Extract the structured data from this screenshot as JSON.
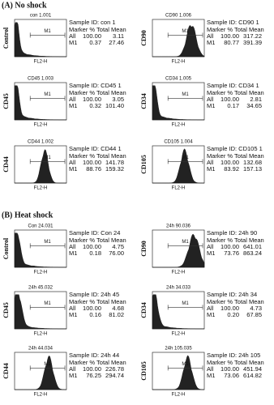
{
  "sections": [
    {
      "title": "(A) No shock",
      "panels": [
        {
          "marker": "Control",
          "file": "con 1.001",
          "sample_id": "Sample ID: con 1",
          "header": "Marker % Total Mean",
          "rows": [
            [
              "All",
              "100.00",
              "3.11"
            ],
            [
              "M1",
              "0.37",
              "27.46"
            ]
          ],
          "gate": "M1",
          "xlabel": "FL2-H"
        },
        {
          "marker": "CD90",
          "file": "CD90 1.006",
          "sample_id": "Sample ID: CD90 1",
          "header": "Marker % Total Mean",
          "rows": [
            [
              "All",
              "100.00",
              "317.22"
            ],
            [
              "M1",
              "80.77",
              "391.39"
            ]
          ],
          "gate": "M1",
          "xlabel": "FL2-H"
        },
        {
          "marker": "CD45",
          "file": "CD45 1.003",
          "sample_id": "Sample ID: CD45 1",
          "header": "Marker % Total Mean",
          "rows": [
            [
              "All",
              "100.00",
              "3.05"
            ],
            [
              "M1",
              "0.32",
              "101.40"
            ]
          ],
          "gate": "M1",
          "xlabel": "FL2-H"
        },
        {
          "marker": "CD34",
          "file": "CD34 1.005",
          "sample_id": "Sample ID: CD34 1",
          "header": "Marker % Total Mean",
          "rows": [
            [
              "All",
              "100.00",
              "2.81"
            ],
            [
              "M1",
              "0.17",
              "34.65"
            ]
          ],
          "gate": "M1",
          "xlabel": "FL2-H"
        },
        {
          "marker": "CD44",
          "file": "CD44 1.002",
          "sample_id": "Sample ID: CD44 1",
          "header": "Marker % Total Mean",
          "rows": [
            [
              "All",
              "100.00",
              "141.78"
            ],
            [
              "M1",
              "88.76",
              "159.32"
            ]
          ],
          "gate": "M1",
          "xlabel": "FL2-H"
        },
        {
          "marker": "CD105",
          "file": "CD105 1.004",
          "sample_id": "Sample ID: CD105 1",
          "header": "Marker % Total Mean",
          "rows": [
            [
              "All",
              "100.00",
              "132.68"
            ],
            [
              "M1",
              "83.92",
              "157.13"
            ]
          ],
          "gate": "M1",
          "xlabel": "FL2-H"
        }
      ]
    },
    {
      "title": "(B) Heat shock",
      "panels": [
        {
          "marker": "Control",
          "file": "Con 24.031",
          "sample_id": "Sample ID: Con 24",
          "header": "Marker % Total Mean",
          "rows": [
            [
              "All",
              "100.00",
              "4.75"
            ],
            [
              "M1",
              "0.18",
              "76.00"
            ]
          ],
          "gate": "M1",
          "xlabel": "FL2-H"
        },
        {
          "marker": "CD90",
          "file": "24h 90.036",
          "sample_id": "Sample ID: 24h 90",
          "header": "Marker % Total Mean",
          "rows": [
            [
              "All",
              "100.00",
              "641.01"
            ],
            [
              "M1",
              "73.76",
              "863.24"
            ]
          ],
          "gate": "M1",
          "xlabel": "FL2-H"
        },
        {
          "marker": "CD45",
          "file": "24h 45.032",
          "sample_id": "Sample ID: 24h 45",
          "header": "Marker % Total Mean",
          "rows": [
            [
              "All",
              "100.00",
              "4.68"
            ],
            [
              "M1",
              "0.16",
              "81.02"
            ]
          ],
          "gate": "M1",
          "xlabel": "FL2-H"
        },
        {
          "marker": "CD34",
          "file": "24h 34.033",
          "sample_id": "Sample ID: 24h 34",
          "header": "Marker % Total Mean",
          "rows": [
            [
              "All",
              "100.00",
              "4.73"
            ],
            [
              "M1",
              "0.20",
              "67.85"
            ]
          ],
          "gate": "M1",
          "xlabel": "FL2-H"
        },
        {
          "marker": "CD44",
          "file": "24h 44.034",
          "sample_id": "Sample ID: 24h 44",
          "header": "Marker % Total Mean",
          "rows": [
            [
              "All",
              "100.00",
              "226.78"
            ],
            [
              "M1",
              "76.25",
              "294.74"
            ]
          ],
          "gate": "M1",
          "xlabel": "FL2-H"
        },
        {
          "marker": "CD105",
          "file": "24h 105.035",
          "sample_id": "Sample ID: 24h 105",
          "header": "Marker % Total Mean",
          "rows": [
            [
              "All",
              "100.00",
              "451.94"
            ],
            [
              "M1",
              "73.06",
              "614.82"
            ]
          ],
          "gate": "M1",
          "xlabel": "FL2-H"
        }
      ]
    }
  ]
}
